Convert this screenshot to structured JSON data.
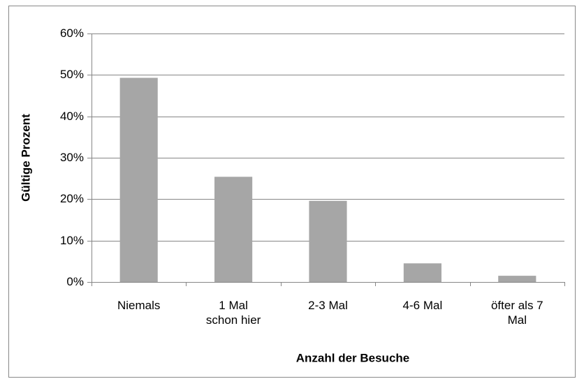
{
  "chart_data": {
    "type": "bar",
    "y_label": "Gültige Prozent",
    "x_label": "Anzahl der Besuche",
    "categories": [
      "Niemals",
      "1 Mal schon hier",
      "2-3 Mal",
      "4-6 Mal",
      "öfter als 7 Mal"
    ],
    "values": [
      49.3,
      25.4,
      19.6,
      4.5,
      1.5
    ],
    "color": "#a6a6a6",
    "ylim": [
      0,
      60
    ],
    "yticks": [
      {
        "value": 0,
        "label": "0%"
      },
      {
        "value": 10,
        "label": "10%"
      },
      {
        "value": 20,
        "label": "20%"
      },
      {
        "value": 30,
        "label": "30%"
      },
      {
        "value": 40,
        "label": "40%"
      },
      {
        "value": 50,
        "label": "50%"
      },
      {
        "value": 60,
        "label": "60%"
      }
    ],
    "grid": true
  }
}
